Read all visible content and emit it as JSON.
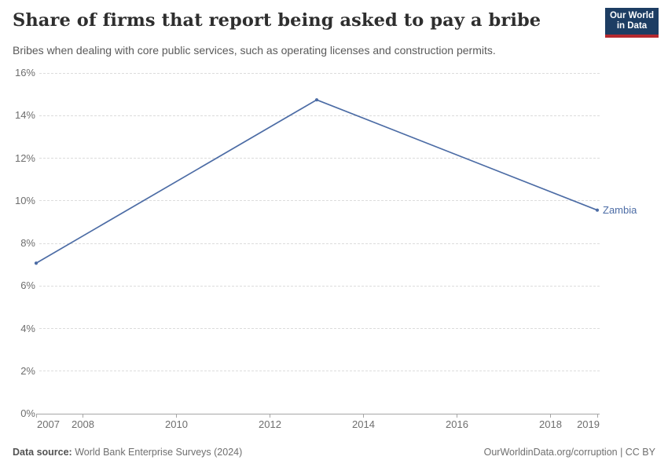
{
  "header": {
    "title": "Share of firms that report being asked to pay a bribe",
    "subtitle": "Bribes when dealing with core public services, such as operating licenses and construction permits.",
    "logo": {
      "line1": "Our World",
      "line2": "in Data",
      "bg_color": "#1d3d63",
      "bar_color": "#b5292f"
    }
  },
  "chart_data": {
    "type": "line",
    "title": "Share of firms that report being asked to pay a bribe",
    "xlabel": "",
    "ylabel": "",
    "xlim": [
      2007,
      2019
    ],
    "ylim": [
      0,
      16
    ],
    "grid": "horizontal-dashed",
    "legend_position": "end-of-line",
    "series": [
      {
        "name": "Zambia",
        "color": "#4c6ca5",
        "x": [
          2007,
          2013,
          2019
        ],
        "values": [
          7.07,
          14.74,
          9.56
        ]
      }
    ],
    "xticks": [
      2007,
      2008,
      2010,
      2012,
      2014,
      2016,
      2018,
      2019
    ],
    "xtick_labels": [
      "2007",
      "2008",
      "2010",
      "2012",
      "2014",
      "2016",
      "2018",
      "2019"
    ],
    "yticks": [
      0,
      2,
      4,
      6,
      8,
      10,
      12,
      14,
      16
    ],
    "ytick_labels": [
      "0%",
      "2%",
      "4%",
      "6%",
      "8%",
      "10%",
      "12%",
      "14%",
      "16%"
    ]
  },
  "footer": {
    "datasource_label": "Data source:",
    "datasource_value": " World Bank Enterprise Surveys (2024)",
    "credit": "OurWorldinData.org/corruption | CC BY"
  }
}
